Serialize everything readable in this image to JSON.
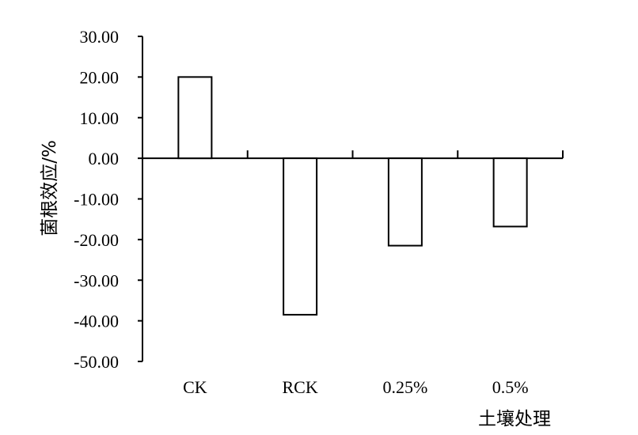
{
  "chart_data": {
    "type": "bar",
    "title": "",
    "xlabel": "土壤处理",
    "ylabel": "菌根效应/%",
    "categories": [
      "CK",
      "RCK",
      "0.25%",
      "0.5%"
    ],
    "values": [
      20.0,
      -38.5,
      -21.5,
      -16.8
    ],
    "ylim": [
      -50,
      30
    ],
    "yticks": [
      30,
      20,
      10,
      0,
      -10,
      -20,
      -30,
      -40,
      -50
    ],
    "ytick_labels": [
      "30.00",
      "20.00",
      "10.00",
      "0.00",
      "-10.00",
      "-20.00",
      "-30.00",
      "-40.00",
      "-50.00"
    ],
    "grid": false,
    "legend": "none",
    "bar_fill": "#ffffff",
    "bar_stroke": "#000000"
  }
}
